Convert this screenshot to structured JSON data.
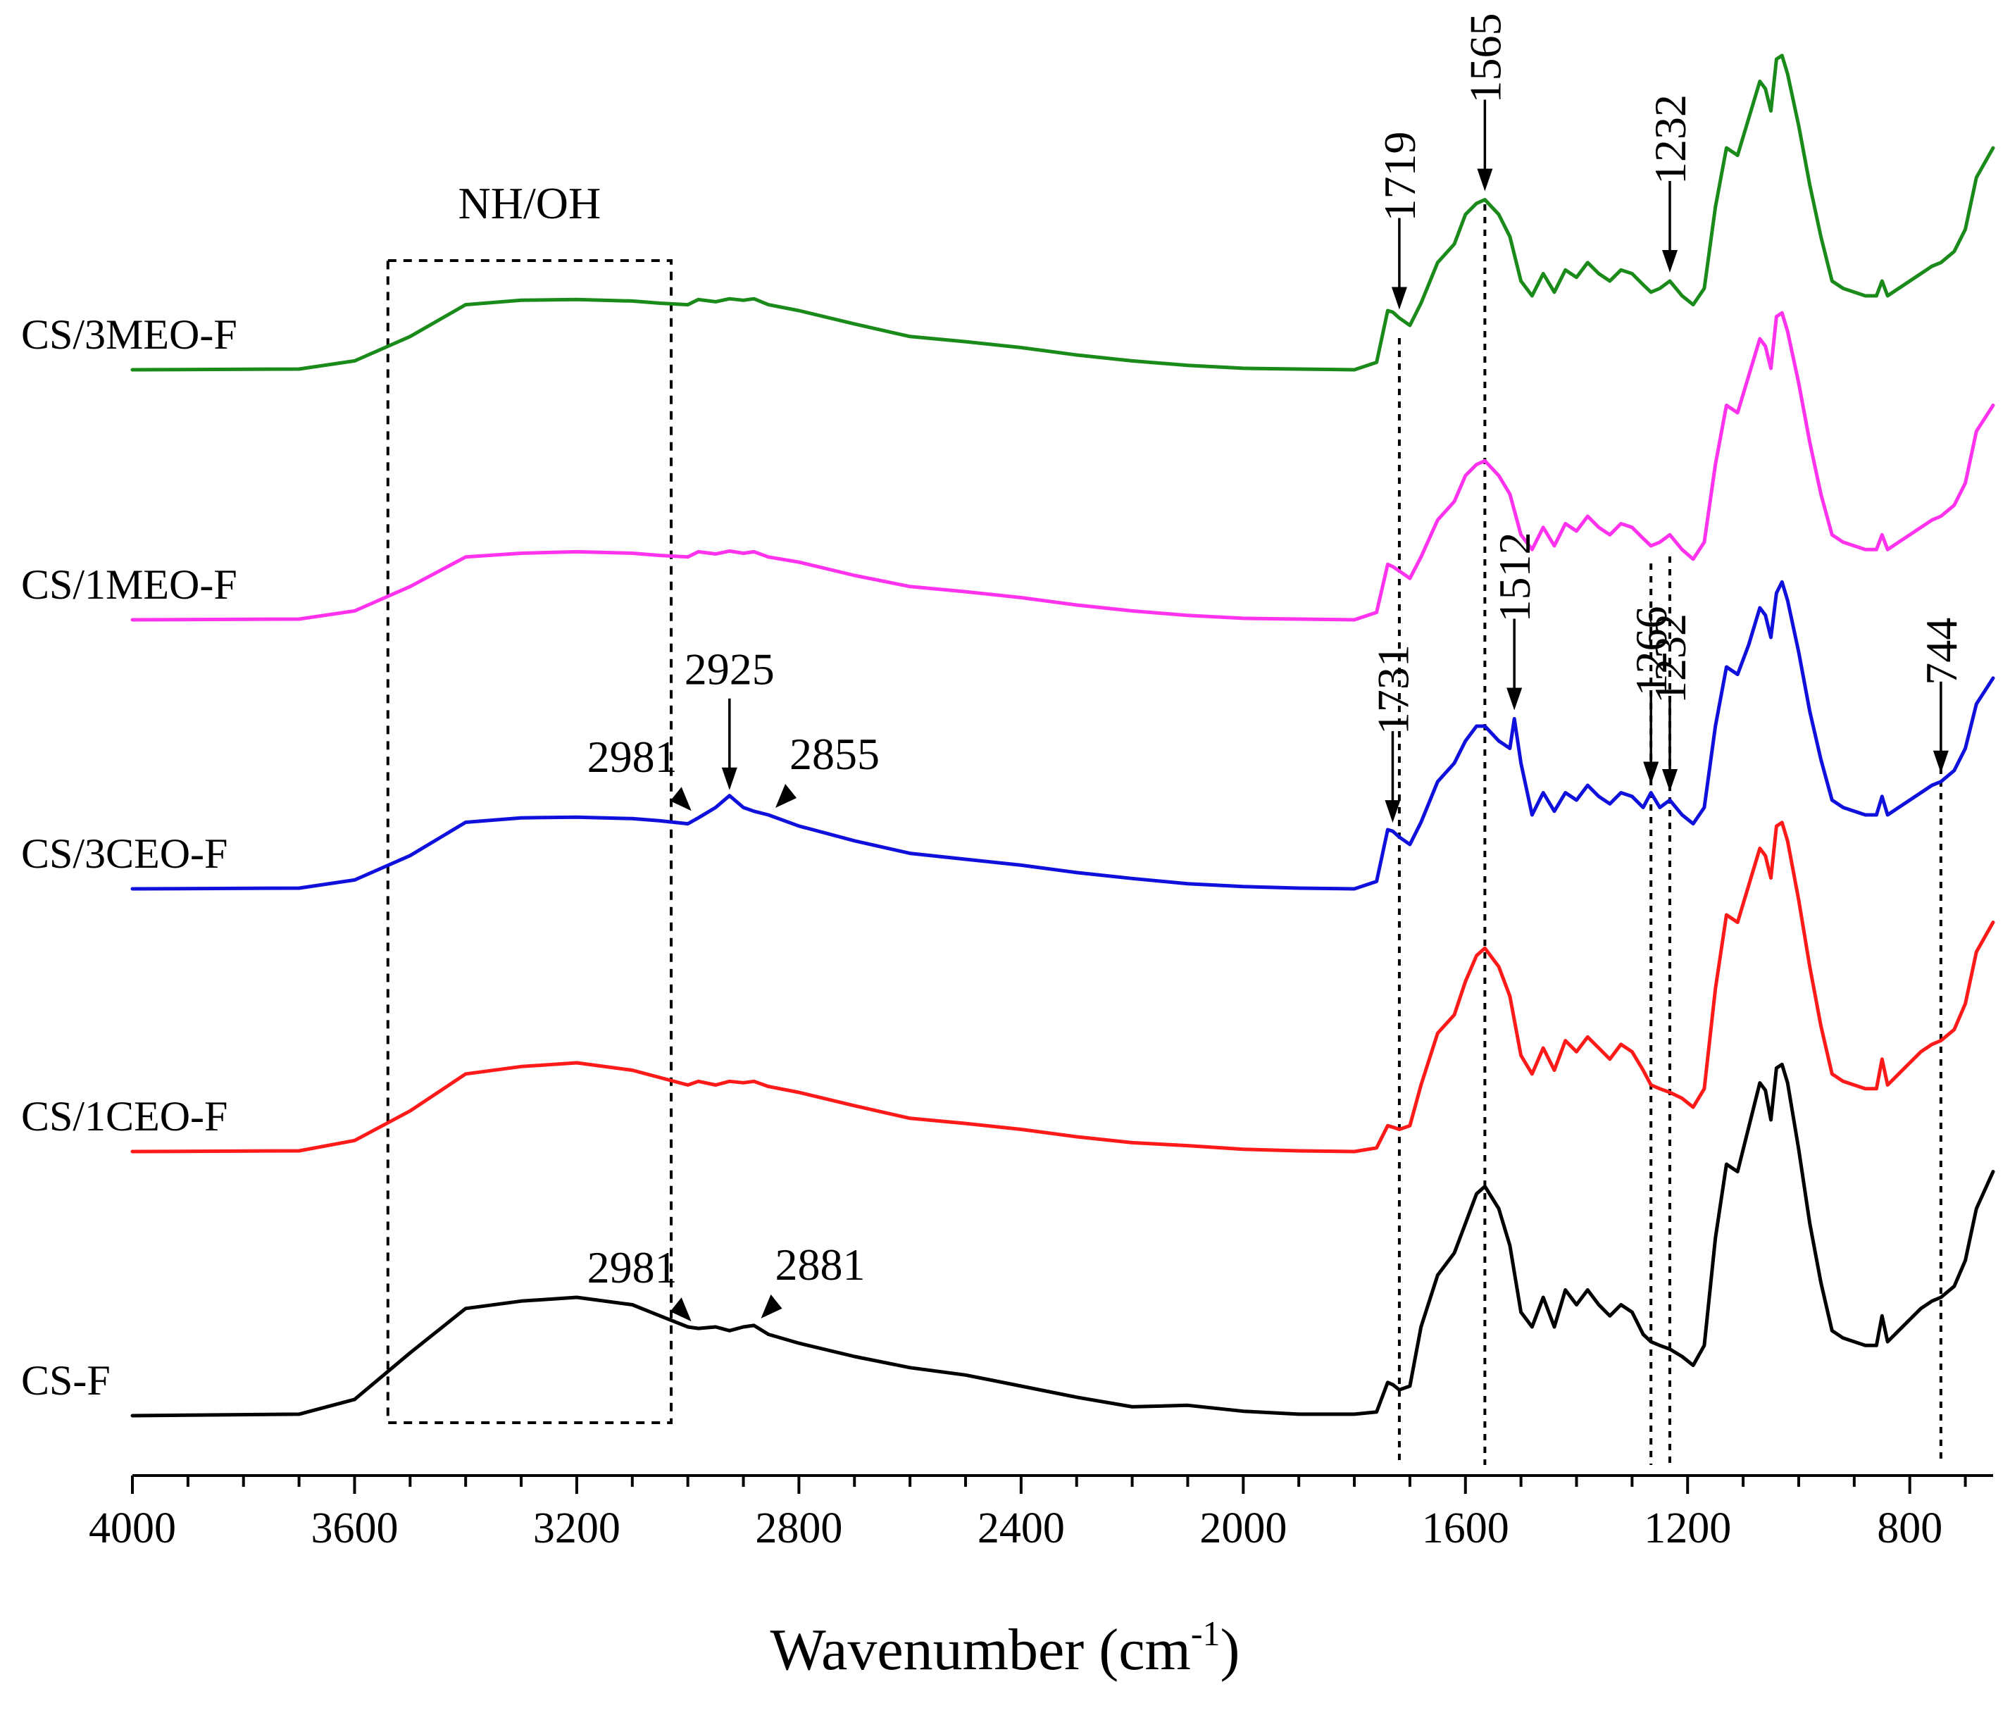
{
  "chart_data": {
    "type": "line",
    "xlabel": "Wavenumber (cm",
    "xlabel_sup": "-1",
    "ylabel": "",
    "xlim": [
      4000,
      650
    ],
    "x_ticks": [
      4000,
      3600,
      3200,
      2800,
      2400,
      2000,
      1600,
      1200,
      800
    ],
    "grid": false,
    "y_axis_shown": false,
    "series": [
      {
        "name": "CS/3MEO-F",
        "color": "#1a8a1a",
        "x": [
          4000,
          3700,
          3600,
          3500,
          3400,
          3300,
          3200,
          3100,
          3050,
          3000,
          2981,
          2950,
          2925,
          2900,
          2881,
          2855,
          2800,
          2700,
          2600,
          2500,
          2400,
          2300,
          2200,
          2100,
          2000,
          1900,
          1800,
          1760,
          1740,
          1731,
          1719,
          1700,
          1680,
          1650,
          1620,
          1600,
          1580,
          1565,
          1540,
          1520,
          1500,
          1480,
          1460,
          1440,
          1420,
          1400,
          1380,
          1360,
          1340,
          1320,
          1300,
          1280,
          1266,
          1250,
          1232,
          1210,
          1190,
          1170,
          1150,
          1130,
          1110,
          1090,
          1070,
          1060,
          1050,
          1040,
          1030,
          1020,
          1000,
          980,
          960,
          940,
          920,
          900,
          880,
          860,
          850,
          840,
          820,
          800,
          780,
          760,
          744,
          720,
          700,
          680,
          650
        ],
        "values": [
          0,
          0.01,
          0.12,
          0.45,
          0.88,
          0.94,
          0.95,
          0.93,
          0.9,
          0.88,
          0.95,
          0.92,
          0.96,
          0.94,
          0.96,
          0.88,
          0.8,
          0.62,
          0.45,
          0.38,
          0.3,
          0.2,
          0.12,
          0.06,
          0.02,
          0.01,
          0.0,
          0.1,
          0.8,
          0.78,
          0.7,
          0.6,
          0.9,
          1.45,
          1.7,
          2.1,
          2.25,
          2.3,
          2.1,
          1.8,
          1.2,
          1.0,
          1.3,
          1.05,
          1.35,
          1.25,
          1.45,
          1.3,
          1.2,
          1.35,
          1.3,
          1.15,
          1.05,
          1.1,
          1.2,
          1.0,
          0.88,
          1.1,
          2.2,
          3.0,
          2.9,
          3.4,
          3.9,
          3.8,
          3.5,
          4.2,
          4.25,
          4.0,
          3.3,
          2.5,
          1.8,
          1.2,
          1.1,
          1.05,
          1.0,
          1.0,
          1.2,
          1.0,
          1.1,
          1.2,
          1.3,
          1.4,
          1.45,
          1.6,
          1.9,
          2.6,
          3.0
        ]
      },
      {
        "name": "CS/1MEO-F",
        "color": "#ff33ee",
        "x": [
          4000,
          3700,
          3600,
          3500,
          3400,
          3300,
          3200,
          3100,
          3050,
          3000,
          2981,
          2950,
          2925,
          2900,
          2881,
          2855,
          2800,
          2700,
          2600,
          2500,
          2400,
          2300,
          2200,
          2100,
          2000,
          1900,
          1800,
          1760,
          1740,
          1731,
          1719,
          1700,
          1680,
          1650,
          1620,
          1600,
          1580,
          1565,
          1540,
          1520,
          1500,
          1480,
          1460,
          1440,
          1420,
          1400,
          1380,
          1360,
          1340,
          1320,
          1300,
          1280,
          1266,
          1250,
          1232,
          1210,
          1190,
          1170,
          1150,
          1130,
          1110,
          1090,
          1070,
          1060,
          1050,
          1040,
          1030,
          1020,
          1000,
          980,
          960,
          940,
          920,
          900,
          880,
          860,
          850,
          840,
          820,
          800,
          780,
          760,
          744,
          720,
          700,
          680,
          650
        ],
        "values": [
          0,
          0.01,
          0.12,
          0.45,
          0.85,
          0.9,
          0.92,
          0.9,
          0.87,
          0.85,
          0.92,
          0.89,
          0.93,
          0.9,
          0.92,
          0.85,
          0.78,
          0.6,
          0.45,
          0.38,
          0.3,
          0.2,
          0.12,
          0.06,
          0.02,
          0.01,
          0.0,
          0.1,
          0.75,
          0.72,
          0.66,
          0.56,
          0.85,
          1.35,
          1.6,
          1.95,
          2.1,
          2.15,
          1.95,
          1.7,
          1.15,
          0.95,
          1.25,
          1.0,
          1.3,
          1.2,
          1.4,
          1.25,
          1.15,
          1.3,
          1.25,
          1.1,
          1.0,
          1.05,
          1.15,
          0.95,
          0.82,
          1.05,
          2.1,
          2.9,
          2.8,
          3.3,
          3.8,
          3.7,
          3.4,
          4.1,
          4.15,
          3.9,
          3.2,
          2.4,
          1.7,
          1.15,
          1.05,
          1.0,
          0.95,
          0.95,
          1.15,
          0.95,
          1.05,
          1.15,
          1.25,
          1.35,
          1.4,
          1.55,
          1.85,
          2.55,
          2.9
        ]
      },
      {
        "name": "CS/3CEO-F",
        "color": "#1010dd",
        "x": [
          4000,
          3700,
          3600,
          3500,
          3400,
          3300,
          3200,
          3100,
          3050,
          3000,
          2981,
          2950,
          2925,
          2900,
          2881,
          2855,
          2800,
          2700,
          2600,
          2500,
          2400,
          2300,
          2200,
          2100,
          2000,
          1900,
          1800,
          1760,
          1740,
          1731,
          1719,
          1700,
          1680,
          1650,
          1620,
          1600,
          1580,
          1565,
          1540,
          1520,
          1512,
          1500,
          1480,
          1460,
          1440,
          1420,
          1400,
          1380,
          1360,
          1340,
          1320,
          1300,
          1280,
          1266,
          1250,
          1232,
          1210,
          1190,
          1170,
          1150,
          1130,
          1110,
          1090,
          1070,
          1060,
          1050,
          1040,
          1030,
          1020,
          1000,
          980,
          960,
          940,
          920,
          900,
          880,
          860,
          850,
          840,
          820,
          800,
          780,
          760,
          744,
          720,
          700,
          680,
          650
        ],
        "values": [
          0,
          0.01,
          0.12,
          0.45,
          0.9,
          0.96,
          0.97,
          0.95,
          0.92,
          0.88,
          0.96,
          1.1,
          1.26,
          1.1,
          1.05,
          1.0,
          0.85,
          0.65,
          0.48,
          0.4,
          0.32,
          0.22,
          0.14,
          0.07,
          0.03,
          0.01,
          0.0,
          0.1,
          0.8,
          0.78,
          0.7,
          0.6,
          0.9,
          1.45,
          1.7,
          2.0,
          2.2,
          2.2,
          2.0,
          1.9,
          2.3,
          1.7,
          1.0,
          1.3,
          1.05,
          1.3,
          1.2,
          1.4,
          1.25,
          1.15,
          1.3,
          1.25,
          1.1,
          1.3,
          1.1,
          1.2,
          1.0,
          0.88,
          1.1,
          2.2,
          3.0,
          2.9,
          3.3,
          3.8,
          3.7,
          3.4,
          4.0,
          4.15,
          3.9,
          3.2,
          2.4,
          1.75,
          1.2,
          1.1,
          1.05,
          1.0,
          1.0,
          1.25,
          1.0,
          1.1,
          1.2,
          1.3,
          1.4,
          1.45,
          1.6,
          1.9,
          2.5,
          2.85
        ]
      },
      {
        "name": "CS/1CEO-F",
        "color": "#ff1a1a",
        "x": [
          4000,
          3700,
          3600,
          3500,
          3400,
          3300,
          3200,
          3100,
          3050,
          3000,
          2981,
          2950,
          2925,
          2900,
          2881,
          2855,
          2800,
          2700,
          2600,
          2500,
          2400,
          2300,
          2200,
          2100,
          2000,
          1900,
          1800,
          1760,
          1740,
          1731,
          1719,
          1700,
          1680,
          1650,
          1620,
          1600,
          1580,
          1565,
          1540,
          1520,
          1500,
          1480,
          1460,
          1440,
          1420,
          1400,
          1380,
          1360,
          1340,
          1320,
          1300,
          1280,
          1266,
          1250,
          1232,
          1210,
          1190,
          1170,
          1150,
          1130,
          1110,
          1090,
          1070,
          1060,
          1050,
          1040,
          1030,
          1020,
          1000,
          980,
          960,
          940,
          920,
          900,
          880,
          860,
          850,
          840,
          820,
          800,
          780,
          760,
          744,
          720,
          700,
          680,
          650
        ],
        "values": [
          0,
          0.01,
          0.15,
          0.55,
          1.05,
          1.15,
          1.2,
          1.1,
          1.0,
          0.9,
          0.95,
          0.9,
          0.95,
          0.93,
          0.95,
          0.88,
          0.8,
          0.62,
          0.45,
          0.38,
          0.3,
          0.2,
          0.12,
          0.08,
          0.03,
          0.01,
          0.0,
          0.05,
          0.35,
          0.33,
          0.3,
          0.35,
          0.9,
          1.6,
          1.85,
          2.3,
          2.65,
          2.75,
          2.5,
          2.1,
          1.3,
          1.05,
          1.4,
          1.1,
          1.5,
          1.35,
          1.55,
          1.4,
          1.25,
          1.45,
          1.35,
          1.1,
          0.9,
          0.85,
          0.8,
          0.72,
          0.6,
          0.85,
          2.2,
          3.2,
          3.1,
          3.6,
          4.1,
          4.0,
          3.7,
          4.4,
          4.45,
          4.2,
          3.4,
          2.5,
          1.7,
          1.05,
          0.95,
          0.9,
          0.85,
          0.85,
          1.25,
          0.9,
          1.05,
          1.2,
          1.35,
          1.45,
          1.5,
          1.65,
          2.0,
          2.7,
          3.1
        ]
      },
      {
        "name": "CS-F",
        "color": "#000000",
        "x": [
          4000,
          3700,
          3600,
          3500,
          3400,
          3300,
          3200,
          3100,
          3050,
          3000,
          2981,
          2950,
          2925,
          2900,
          2881,
          2855,
          2800,
          2700,
          2600,
          2500,
          2400,
          2300,
          2200,
          2100,
          2000,
          1900,
          1800,
          1760,
          1740,
          1731,
          1719,
          1700,
          1680,
          1650,
          1620,
          1600,
          1580,
          1565,
          1540,
          1520,
          1500,
          1480,
          1460,
          1440,
          1420,
          1400,
          1380,
          1360,
          1340,
          1320,
          1300,
          1280,
          1266,
          1250,
          1232,
          1210,
          1190,
          1170,
          1150,
          1130,
          1110,
          1090,
          1070,
          1060,
          1050,
          1040,
          1030,
          1020,
          1000,
          980,
          960,
          940,
          920,
          900,
          880,
          860,
          850,
          840,
          820,
          800,
          780,
          760,
          744,
          720,
          700,
          680,
          650
        ],
        "values": [
          0,
          0.02,
          0.22,
          0.85,
          1.45,
          1.55,
          1.6,
          1.5,
          1.35,
          1.2,
          1.18,
          1.2,
          1.15,
          1.2,
          1.22,
          1.1,
          0.98,
          0.8,
          0.65,
          0.55,
          0.4,
          0.25,
          0.12,
          0.14,
          0.06,
          0.02,
          0.02,
          0.05,
          0.45,
          0.42,
          0.35,
          0.4,
          1.2,
          1.9,
          2.2,
          2.6,
          3.0,
          3.1,
          2.8,
          2.3,
          1.4,
          1.2,
          1.6,
          1.2,
          1.7,
          1.5,
          1.7,
          1.5,
          1.35,
          1.5,
          1.4,
          1.1,
          1.0,
          0.95,
          0.9,
          0.8,
          0.68,
          0.95,
          2.4,
          3.4,
          3.3,
          3.9,
          4.5,
          4.4,
          4.0,
          4.7,
          4.75,
          4.5,
          3.6,
          2.6,
          1.8,
          1.15,
          1.05,
          1.0,
          0.95,
          0.95,
          1.35,
          1.0,
          1.15,
          1.3,
          1.45,
          1.55,
          1.6,
          1.75,
          2.1,
          2.8,
          3.3
        ]
      }
    ],
    "region_box": {
      "label": "NH/OH",
      "x_from": 3540,
      "x_to": 3030
    },
    "reference_lines": [
      1719,
      1565,
      1266,
      1232,
      744
    ],
    "annotations": [
      {
        "text": "1719",
        "x": 1719,
        "series": "CS/3MEO-F",
        "style": "vertical-arrow"
      },
      {
        "text": "1565",
        "x": 1565,
        "series": "CS/3MEO-F",
        "style": "vertical-arrow"
      },
      {
        "text": "1232",
        "x": 1232,
        "series": "CS/3MEO-F",
        "style": "vertical-arrow"
      },
      {
        "text": "1731",
        "x": 1731,
        "series": "CS/3CEO-F",
        "style": "vertical-arrow"
      },
      {
        "text": "1512",
        "x": 1512,
        "series": "CS/3CEO-F",
        "style": "vertical-arrow"
      },
      {
        "text": "1266",
        "x": 1266,
        "series": "CS/3CEO-F",
        "style": "vertical-arrow"
      },
      {
        "text": "1232",
        "x": 1232,
        "series": "CS/3CEO-F",
        "style": "vertical-arrow"
      },
      {
        "text": "744",
        "x": 744,
        "series": "CS/3CEO-F",
        "style": "vertical-arrow"
      },
      {
        "text": "2925",
        "x": 2925,
        "series": "CS/3CEO-F",
        "style": "down-arrow"
      },
      {
        "text": "2981",
        "x": 2981,
        "series": "CS/3CEO-F",
        "style": "left-arrow"
      },
      {
        "text": "2855",
        "x": 2855,
        "series": "CS/3CEO-F",
        "style": "right-arrow"
      },
      {
        "text": "2981",
        "x": 2981,
        "series": "CS-F",
        "style": "left-arrow"
      },
      {
        "text": "2881",
        "x": 2881,
        "series": "CS-F",
        "style": "right-arrow"
      }
    ]
  }
}
